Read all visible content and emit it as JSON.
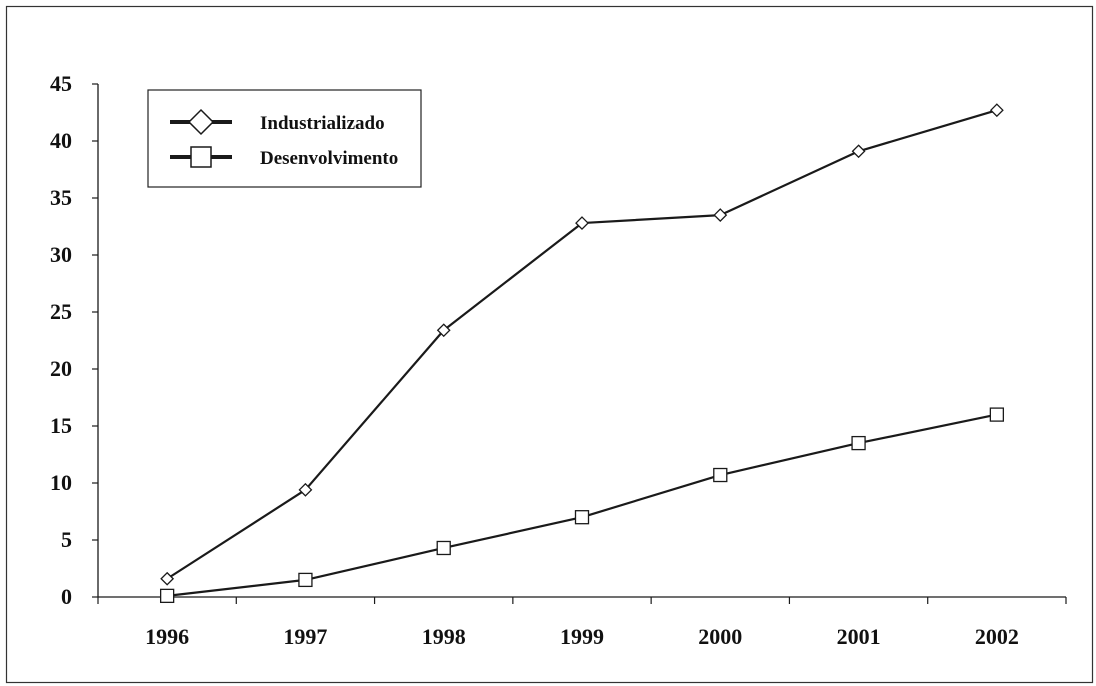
{
  "chart_data": {
    "type": "line",
    "categories": [
      "1996",
      "1997",
      "1998",
      "1999",
      "2000",
      "2001",
      "2002"
    ],
    "ylim": [
      0,
      45
    ],
    "yticks": [
      "0",
      "5",
      "10",
      "15",
      "20",
      "25",
      "30",
      "35",
      "40",
      "45"
    ],
    "grid": false,
    "legend_placement": "top-left",
    "series": [
      {
        "name": "Industrializado",
        "marker": "diamond",
        "values": [
          1.6,
          9.4,
          23.4,
          32.8,
          33.5,
          39.1,
          42.7
        ]
      },
      {
        "name": "Desenvolvimento",
        "marker": "square",
        "values": [
          0.1,
          1.5,
          4.3,
          7.0,
          10.7,
          13.5,
          16.0
        ]
      }
    ],
    "colors": {
      "line": "#1a1a1a",
      "marker_fill": "#ffffff",
      "frame": "#333333"
    }
  }
}
